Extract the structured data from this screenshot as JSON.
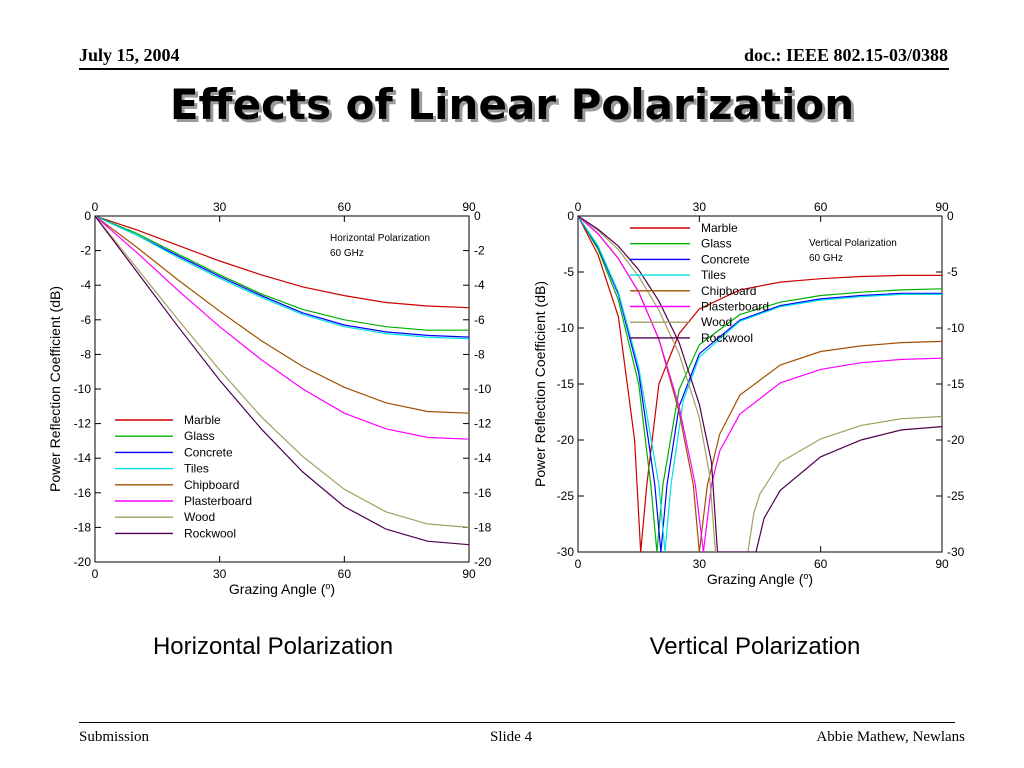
{
  "header": {
    "date": "July 15, 2004",
    "doc": "doc.: IEEE 802.15-03/0388"
  },
  "title": "Effects of Linear Polarization",
  "captions": {
    "left": "Horizontal Polarization",
    "right": "Vertical Polarization"
  },
  "footer": {
    "left": "Submission",
    "center": "Slide 4",
    "right": "Abbie Mathew, Newlans"
  },
  "series_colors": {
    "Marble": "#cc0000",
    "Glass": "#00b000",
    "Concrete": "#0000ff",
    "Tiles": "#00e0e0",
    "Chipboard": "#a05000",
    "Plasterboard": "#ff00ff",
    "Wood": "#a0a060",
    "Rockwool": "#500050"
  },
  "chart_data": [
    {
      "type": "line",
      "xlabel": "Grazing Angle (o)",
      "ylabel": "Power Reflection Coefficient (dB)",
      "annotation": [
        "Horizontal Polarization",
        "60 GHz"
      ],
      "xlim": [
        0,
        90
      ],
      "ylim": [
        -20,
        0
      ],
      "xticks": [
        0,
        30,
        60,
        90
      ],
      "yticks": [
        0,
        -2,
        -4,
        -6,
        -8,
        -10,
        -12,
        -14,
        -16,
        -18,
        -20
      ],
      "legend_position": "lower-left",
      "x": [
        0,
        10,
        20,
        30,
        40,
        50,
        60,
        70,
        80,
        90
      ],
      "series": [
        {
          "name": "Marble",
          "values": [
            0,
            -0.8,
            -1.7,
            -2.6,
            -3.4,
            -4.1,
            -4.6,
            -5.0,
            -5.2,
            -5.3
          ]
        },
        {
          "name": "Glass",
          "values": [
            0,
            -1.0,
            -2.2,
            -3.4,
            -4.5,
            -5.4,
            -6.0,
            -6.4,
            -6.6,
            -6.6
          ]
        },
        {
          "name": "Concrete",
          "values": [
            0,
            -1.1,
            -2.3,
            -3.5,
            -4.6,
            -5.6,
            -6.3,
            -6.7,
            -6.9,
            -7.0
          ]
        },
        {
          "name": "Tiles",
          "values": [
            0,
            -1.1,
            -2.4,
            -3.6,
            -4.7,
            -5.7,
            -6.4,
            -6.8,
            -7.0,
            -7.1
          ]
        },
        {
          "name": "Chipboard",
          "values": [
            0,
            -1.8,
            -3.7,
            -5.5,
            -7.2,
            -8.7,
            -9.9,
            -10.8,
            -11.3,
            -11.4
          ]
        },
        {
          "name": "Plasterboard",
          "values": [
            0,
            -2.1,
            -4.3,
            -6.4,
            -8.3,
            -10.0,
            -11.4,
            -12.3,
            -12.8,
            -12.9
          ]
        },
        {
          "name": "Wood",
          "values": [
            0,
            -3.0,
            -6.0,
            -8.9,
            -11.6,
            -13.9,
            -15.8,
            -17.1,
            -17.8,
            -18.0
          ]
        },
        {
          "name": "Rockwool",
          "values": [
            0,
            -3.2,
            -6.4,
            -9.5,
            -12.3,
            -14.8,
            -16.8,
            -18.1,
            -18.8,
            -19.0
          ]
        }
      ]
    },
    {
      "type": "line",
      "xlabel": "Grazing Angle (o)",
      "ylabel": "Power Reflection Coefficient (dB)",
      "annotation": [
        "Vertical Polarization",
        "60 GHz"
      ],
      "xlim": [
        0,
        90
      ],
      "ylim": [
        -30,
        0
      ],
      "xticks": [
        0,
        30,
        60,
        90
      ],
      "yticks": [
        0,
        -5,
        -10,
        -15,
        -20,
        -25,
        -30
      ],
      "legend_position": "top-left",
      "series": [
        {
          "name": "Marble",
          "x": [
            0,
            5,
            10,
            14,
            15.5,
            17,
            20,
            25,
            30,
            40,
            50,
            60,
            70,
            80,
            90
          ],
          "values": [
            0,
            -3.5,
            -9,
            -20,
            -30,
            -24,
            -15,
            -10.5,
            -8.3,
            -6.6,
            -5.9,
            -5.6,
            -5.4,
            -5.3,
            -5.3
          ]
        },
        {
          "name": "Glass",
          "x": [
            0,
            5,
            10,
            15,
            18,
            19.5,
            21,
            25,
            30,
            40,
            50,
            60,
            70,
            80,
            90
          ],
          "values": [
            0,
            -3,
            -7.5,
            -15,
            -24,
            -30,
            -24,
            -15.5,
            -11.5,
            -8.8,
            -7.7,
            -7.1,
            -6.8,
            -6.6,
            -6.5
          ]
        },
        {
          "name": "Concrete",
          "x": [
            0,
            5,
            10,
            15,
            19,
            20.5,
            22,
            25,
            30,
            40,
            50,
            60,
            70,
            80,
            90
          ],
          "values": [
            0,
            -2.8,
            -7,
            -14,
            -24,
            -30,
            -24,
            -17,
            -12.3,
            -9.3,
            -8.0,
            -7.4,
            -7.1,
            -6.9,
            -6.9
          ]
        },
        {
          "name": "Tiles",
          "x": [
            0,
            5,
            10,
            15,
            20,
            21.5,
            23,
            26,
            30,
            40,
            50,
            60,
            70,
            80,
            90
          ],
          "values": [
            0,
            -2.7,
            -6.8,
            -13.5,
            -24,
            -30,
            -24,
            -16.5,
            -12.6,
            -9.4,
            -8.1,
            -7.5,
            -7.2,
            -7.0,
            -7.0
          ]
        },
        {
          "name": "Chipboard",
          "x": [
            0,
            5,
            10,
            15,
            20,
            25,
            28.5,
            30,
            32,
            35,
            40,
            50,
            60,
            70,
            80,
            90
          ],
          "values": [
            0,
            -1.6,
            -3.8,
            -6.8,
            -11,
            -17.5,
            -24,
            -30,
            -24,
            -19.5,
            -16,
            -13.3,
            -12.1,
            -11.6,
            -11.3,
            -11.2
          ]
        },
        {
          "name": "Plasterboard",
          "x": [
            0,
            5,
            10,
            15,
            20,
            25,
            29,
            31,
            33,
            35,
            40,
            50,
            60,
            70,
            80,
            90
          ],
          "values": [
            0,
            -1.6,
            -3.8,
            -6.8,
            -11,
            -17,
            -24,
            -30,
            -24,
            -21,
            -17.7,
            -14.9,
            -13.7,
            -13.1,
            -12.8,
            -12.7
          ]
        },
        {
          "name": "Wood",
          "x": [
            0,
            5,
            10,
            15,
            20,
            25,
            30,
            32.5,
            34,
            42,
            43.5,
            45,
            50,
            60,
            70,
            80,
            90
          ],
          "values": [
            0,
            -1.3,
            -3,
            -5.4,
            -8.4,
            -12.3,
            -18,
            -23,
            -30,
            -30,
            -26.5,
            -24.8,
            -22,
            -19.9,
            -18.7,
            -18.1,
            -17.9
          ]
        },
        {
          "name": "Rockwool",
          "x": [
            0,
            5,
            10,
            15,
            20,
            25,
            30,
            33,
            34.5,
            44,
            46,
            50,
            60,
            70,
            80,
            90
          ],
          "values": [
            0,
            -1.2,
            -2.7,
            -4.8,
            -7.6,
            -11.3,
            -16.8,
            -22,
            -30,
            -30,
            -27,
            -24.5,
            -21.5,
            -20,
            -19.1,
            -18.8
          ]
        }
      ]
    }
  ]
}
